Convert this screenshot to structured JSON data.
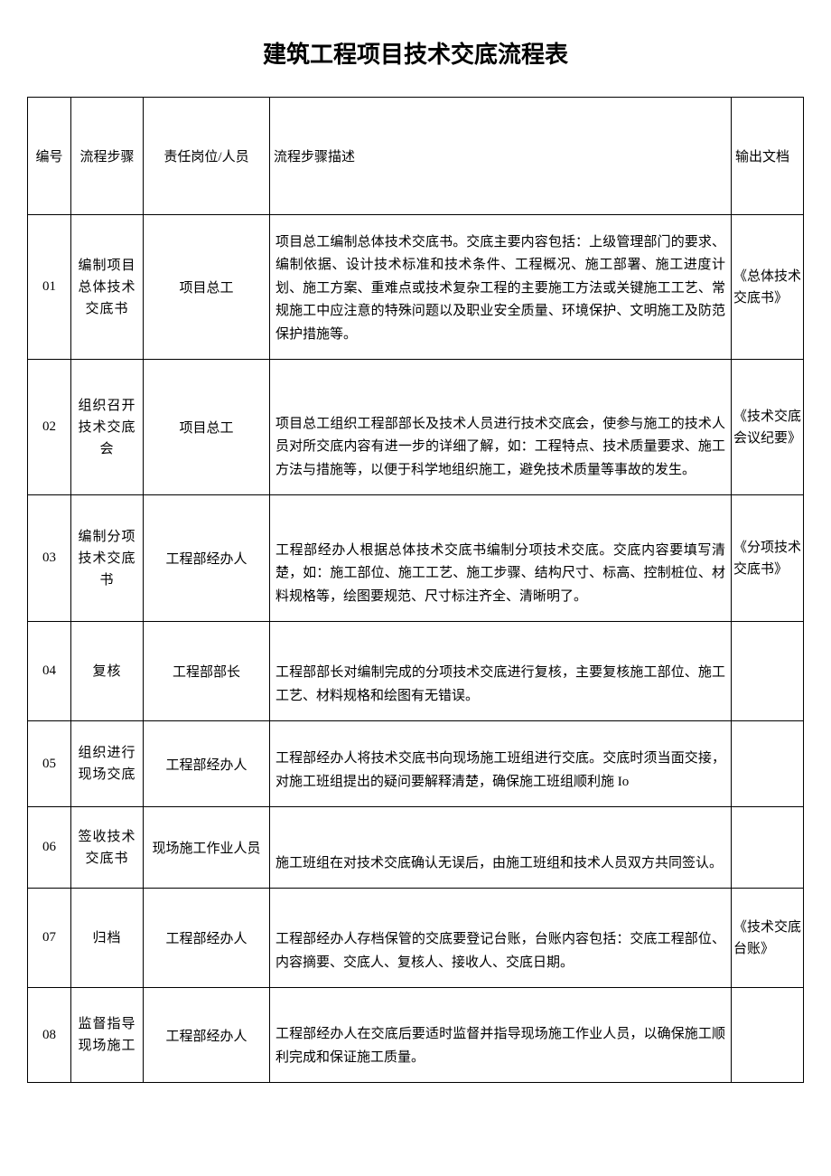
{
  "title": "建筑工程项目技术交底流程表",
  "headers": {
    "id": "编号",
    "step": "流程步骤",
    "role": "责任岗位/人员",
    "desc": "流程步骤描述",
    "output": "输出文档"
  },
  "rows": [
    {
      "id": "01",
      "step": "编制项目总体技术交底书",
      "role": "项目总工",
      "desc": "项目总工编制总体技术交底书。交底主要内容包括：上级管理部门的要求、编制依据、设计技术标准和技术条件、工程概况、施工部署、施工进度计划、施工方案、重难点或技术复杂工程的主要施工方法或关键施工工艺、常规施工中应注意的特殊问题以及职业安全质量、环境保护、文明施工及防范保护措施等。",
      "output": "《总体技术交底书》"
    },
    {
      "id": "02",
      "step": "组织召开技术交底会",
      "role": "项目总工",
      "desc": "项目总工组织工程部部长及技术人员进行技术交底会，使参与施工的技术人员对所交底内容有进一步的详细了解，如：工程特点、技术质量要求、施工方法与措施等，以便于科学地组织施工，避免技术质量等事故的发生。",
      "output": "《技术交底会议纪要》"
    },
    {
      "id": "03",
      "step": "编制分项技术交底书",
      "role": "工程部经办人",
      "desc": "工程部经办人根据总体技术交底书编制分项技术交底。交底内容要填写清楚，如：施工部位、施工工艺、施工步骤、结构尺寸、标高、控制桩位、材料规格等，绘图要规范、尺寸标注齐全、清晰明了。",
      "output": "《分项技术交底书》"
    },
    {
      "id": "04",
      "step": "复核",
      "role": "工程部部长",
      "desc": "工程部部长对编制完成的分项技术交底进行复核，主要复核施工部位、施工工艺、材料规格和绘图有无错误。",
      "output": ""
    },
    {
      "id": "05",
      "step": "组织进行现场交底",
      "role": "工程部经办人",
      "desc": "工程部经办人将技术交底书向现场施工班组进行交底。交底时须当面交接，对施工班组提出的疑问要解释清楚，确保施工班组顺利施 Io",
      "output": ""
    },
    {
      "id": "06",
      "step": "签收技术交底书",
      "role": "现场施工作业人员",
      "desc": "施工班组在对技术交底确认无误后，由施工班组和技术人员双方共同签认。",
      "output": ""
    },
    {
      "id": "07",
      "step": "归档",
      "role": "工程部经办人",
      "desc": "工程部经办人存档保管的交底要登记台账，台账内容包括：交底工程部位、内容摘要、交底人、复核人、接收人、交底日期。",
      "output": "《技术交底台账》"
    },
    {
      "id": "08",
      "step": "监督指导现场施工",
      "role": "工程部经办人",
      "desc": "工程部经办人在交底后要适时监督并指导现场施工作业人员，以确保施工顺利完成和保证施工质量。",
      "output": ""
    }
  ],
  "styling": {
    "background_color": "#ffffff",
    "text_color": "#000000",
    "border_color": "#000000",
    "title_fontsize": 26,
    "cell_fontsize": 15,
    "font_family": "SimSun"
  }
}
